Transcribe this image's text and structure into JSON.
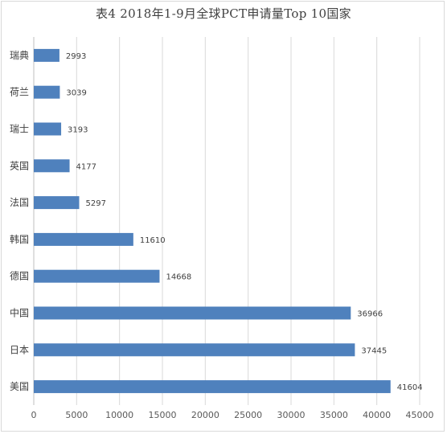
{
  "chart_data": {
    "type": "bar",
    "orientation": "horizontal",
    "title": "表4  2018年1-9月全球PCT申请量Top  10国家",
    "categories": [
      "瑞典",
      "荷兰",
      "瑞士",
      "英国",
      "法国",
      "韩国",
      "德国",
      "中国",
      "日本",
      "美国"
    ],
    "values": [
      2993,
      3039,
      3193,
      4177,
      5297,
      11610,
      14668,
      36966,
      37445,
      41604
    ],
    "xlim": [
      0,
      45000
    ],
    "xticks": [
      0,
      5000,
      10000,
      15000,
      20000,
      25000,
      30000,
      35000,
      40000,
      45000
    ],
    "grid": "vertical",
    "bar_color": "#4f81bd",
    "data_labels": true
  }
}
